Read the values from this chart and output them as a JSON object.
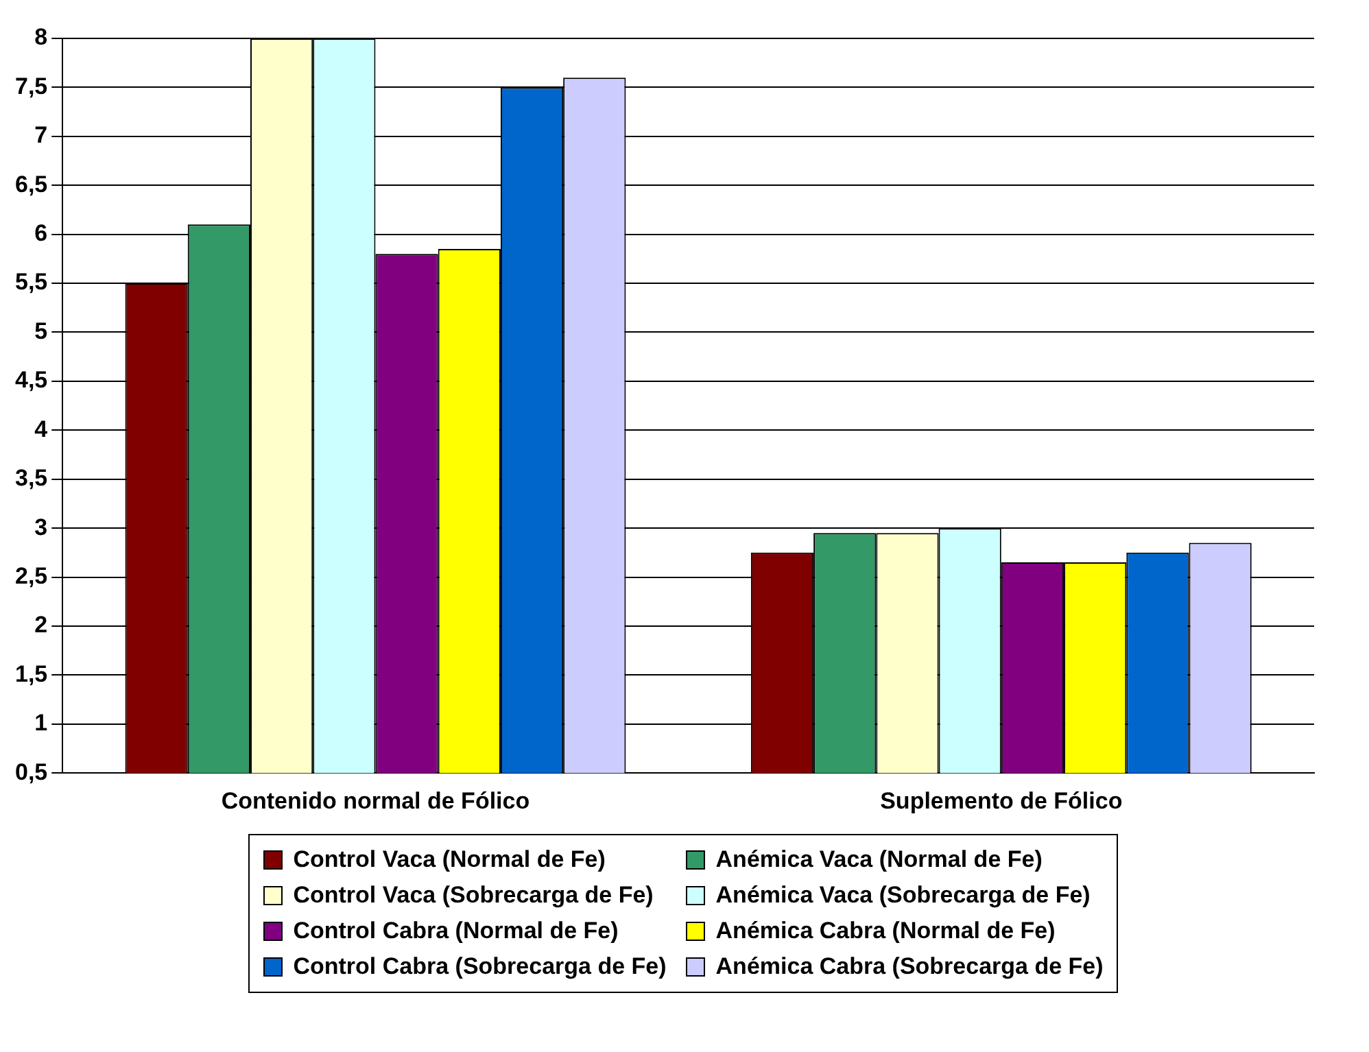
{
  "chart_data": {
    "type": "bar",
    "categories": [
      "Contenido normal de Fólico",
      "Suplemento de Fólico"
    ],
    "series": [
      {
        "name": "Control Vaca (Normal de Fe)",
        "color": "#800000",
        "values": [
          5.5,
          2.75
        ]
      },
      {
        "name": "Anémica Vaca (Normal de Fe)",
        "color": "#339966",
        "values": [
          6.1,
          2.95
        ]
      },
      {
        "name": "Control Vaca (Sobrecarga de Fe)",
        "color": "#ffffcc",
        "values": [
          8.0,
          2.95
        ]
      },
      {
        "name": "Anémica Vaca (Sobrecarga de Fe)",
        "color": "#ccffff",
        "values": [
          8.0,
          3.0
        ]
      },
      {
        "name": "Control Cabra (Normal de Fe)",
        "color": "#800080",
        "values": [
          5.8,
          2.65
        ]
      },
      {
        "name": "Anémica Cabra (Normal de Fe)",
        "color": "#ffff00",
        "values": [
          5.85,
          2.65
        ]
      },
      {
        "name": "Control Cabra (Sobrecarga de Fe)",
        "color": "#0066cc",
        "values": [
          7.5,
          2.75
        ]
      },
      {
        "name": "Anémica Cabra (Sobrecarga de Fe)",
        "color": "#ccccff",
        "values": [
          7.6,
          2.85
        ]
      }
    ],
    "ylim": [
      0.5,
      8
    ],
    "yticks": [
      {
        "value": 0.5,
        "label": "0,5"
      },
      1,
      {
        "value": 1.5,
        "label": "1,5"
      },
      2,
      {
        "value": 2.5,
        "label": "2,5"
      },
      3,
      {
        "value": 3.5,
        "label": "3,5"
      },
      4,
      {
        "value": 4.5,
        "label": "4,5"
      },
      5,
      {
        "value": 5.5,
        "label": "5,5"
      },
      6,
      {
        "value": 6.5,
        "label": "6,5"
      },
      7,
      {
        "value": 7.5,
        "label": "7,5"
      },
      8
    ],
    "grid": "y",
    "legend": "bottom"
  }
}
